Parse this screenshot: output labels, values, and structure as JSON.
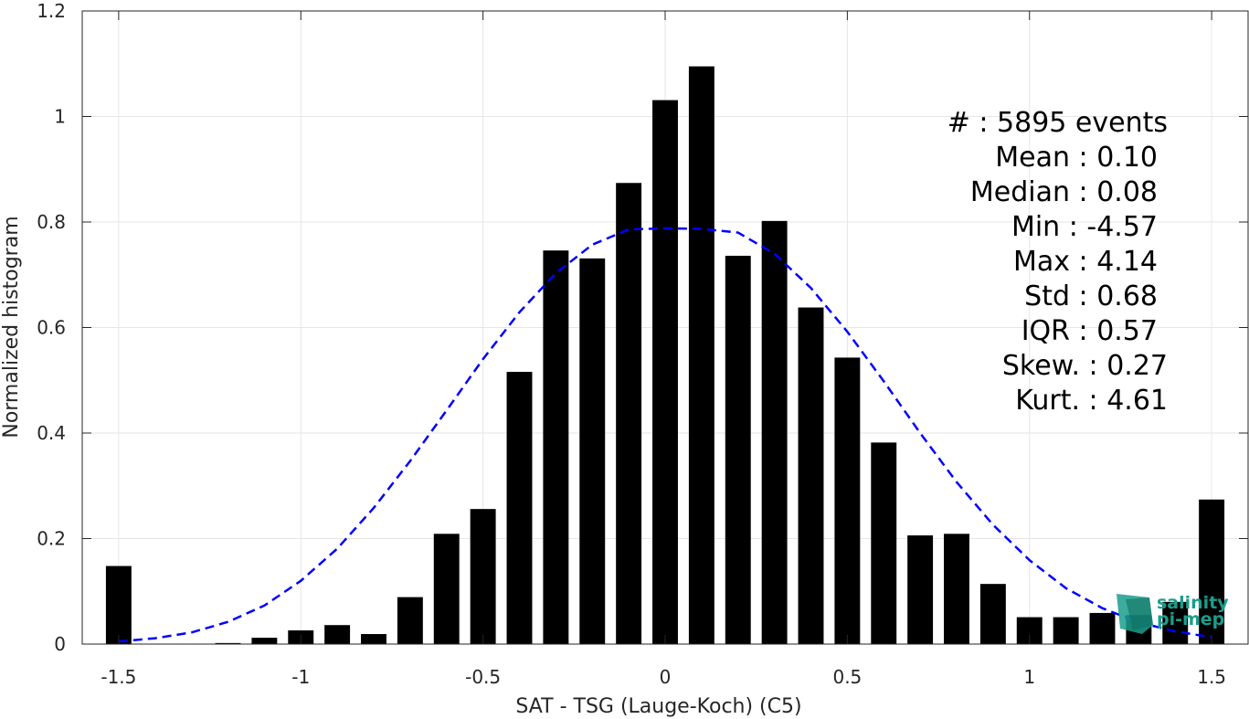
{
  "chart_data": {
    "type": "bar",
    "xlabel": "SAT - TSG (Lauge-Koch) (C5)",
    "ylabel": "Normalized histogram",
    "xlim": [
      -1.6,
      1.6
    ],
    "ylim": [
      0,
      1.2
    ],
    "grid": true,
    "xticks": [
      -1.5,
      -1,
      -0.5,
      0,
      0.5,
      1,
      1.5
    ],
    "xtick_labels": [
      "-1.5",
      "-1",
      "-0.5",
      "0",
      "0.5",
      "1",
      "1.5"
    ],
    "yticks": [
      0,
      0.2,
      0.4,
      0.6,
      0.8,
      1,
      1.2
    ],
    "ytick_labels": [
      "0",
      "0.2",
      "0.4",
      "0.6",
      "0.8",
      "1",
      "1.2"
    ],
    "bar_width": 0.07,
    "bars": {
      "x": [
        -1.5,
        -1.4,
        -1.3,
        -1.2,
        -1.1,
        -1.0,
        -0.9,
        -0.8,
        -0.7,
        -0.6,
        -0.5,
        -0.4,
        -0.3,
        -0.2,
        -0.1,
        0.0,
        0.1,
        0.2,
        0.3,
        0.4,
        0.5,
        0.6,
        0.7,
        0.8,
        0.9,
        1.0,
        1.1,
        1.2,
        1.3,
        1.4,
        1.5
      ],
      "values": [
        0.148,
        0.0,
        0.0,
        0.002,
        0.012,
        0.026,
        0.036,
        0.019,
        0.089,
        0.209,
        0.256,
        0.516,
        0.746,
        0.731,
        0.874,
        1.031,
        1.095,
        0.736,
        0.802,
        0.638,
        0.543,
        0.382,
        0.206,
        0.209,
        0.114,
        0.051,
        0.051,
        0.059,
        0.055,
        0.08,
        0.274
      ],
      "color": "#000000"
    },
    "fit_curve": {
      "style": "dashed",
      "color": "#0000ff",
      "x": [
        -1.5,
        -1.4,
        -1.3,
        -1.2,
        -1.1,
        -1.0,
        -0.9,
        -0.8,
        -0.7,
        -0.6,
        -0.5,
        -0.4,
        -0.3,
        -0.2,
        -0.1,
        0.0,
        0.1,
        0.2,
        0.3,
        0.4,
        0.5,
        0.6,
        0.7,
        0.8,
        0.9,
        1.0,
        1.1,
        1.2,
        1.3,
        1.4,
        1.5
      ],
      "y": [
        0.005,
        0.011,
        0.022,
        0.042,
        0.073,
        0.12,
        0.181,
        0.258,
        0.347,
        0.443,
        0.54,
        0.629,
        0.703,
        0.757,
        0.786,
        0.788,
        0.787,
        0.78,
        0.74,
        0.675,
        0.592,
        0.498,
        0.4,
        0.307,
        0.226,
        0.159,
        0.106,
        0.068,
        0.041,
        0.024,
        0.013
      ]
    },
    "stats": [
      "#  : 5895 events",
      "Mean : 0.10",
      "Median : 0.08",
      "Min : -4.57",
      "Max : 4.14",
      "Std : 0.68",
      "IQR : 0.57",
      "Skew. : 0.27",
      "Kurt. : 4.61"
    ]
  },
  "logo": {
    "line1": "salinity",
    "line2": "pi-mep",
    "color": "#1a9e8c"
  }
}
